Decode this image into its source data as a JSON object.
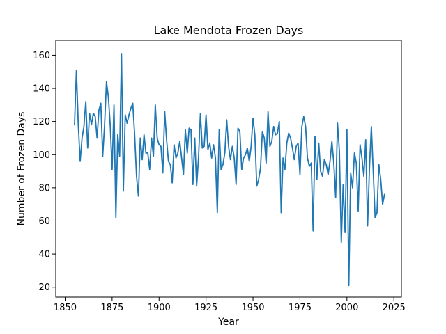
{
  "chart_data": {
    "type": "line",
    "title": "Lake Mendota Frozen Days",
    "xlabel": "Year",
    "ylabel": "Number of Frozen Days",
    "xlim": [
      1845,
      2029
    ],
    "ylim": [
      14,
      169
    ],
    "xticks": [
      1850,
      1875,
      1900,
      1925,
      1950,
      1975,
      2000,
      2025
    ],
    "yticks": [
      20,
      40,
      60,
      80,
      100,
      120,
      140,
      160
    ],
    "grid": false,
    "series_color": "#1f77b4",
    "series": [
      {
        "x": [
          1855,
          1856,
          1857,
          1858,
          1859,
          1860,
          1861,
          1862,
          1863,
          1864,
          1865,
          1866,
          1867,
          1868,
          1869,
          1870,
          1871,
          1872,
          1873,
          1874,
          1875,
          1876,
          1877,
          1878,
          1879,
          1880,
          1881,
          1882,
          1883,
          1884,
          1885,
          1886,
          1887,
          1888,
          1889,
          1890,
          1891,
          1892,
          1893,
          1894,
          1895,
          1896,
          1897,
          1898,
          1899,
          1900,
          1901,
          1902,
          1903,
          1904,
          1905,
          1906,
          1907,
          1908,
          1909,
          1910,
          1911,
          1912,
          1913,
          1914,
          1915,
          1916,
          1917,
          1918,
          1919,
          1920,
          1921,
          1922,
          1923,
          1924,
          1925,
          1926,
          1927,
          1928,
          1929,
          1930,
          1931,
          1932,
          1933,
          1934,
          1935,
          1936,
          1937,
          1938,
          1939,
          1940,
          1941,
          1942,
          1943,
          1944,
          1945,
          1946,
          1947,
          1948,
          1949,
          1950,
          1951,
          1952,
          1953,
          1954,
          1955,
          1956,
          1957,
          1958,
          1959,
          1960,
          1961,
          1962,
          1963,
          1964,
          1965,
          1966,
          1967,
          1968,
          1969,
          1970,
          1971,
          1972,
          1973,
          1974,
          1975,
          1976,
          1977,
          1978,
          1979,
          1980,
          1981,
          1982,
          1983,
          1984,
          1985,
          1986,
          1987,
          1988,
          1989,
          1990,
          1991,
          1992,
          1993,
          1994,
          1995,
          1996,
          1997,
          1998,
          1999,
          2000,
          2001,
          2002,
          2003,
          2004,
          2005,
          2006,
          2007,
          2008,
          2009,
          2010,
          2011,
          2012,
          2013,
          2014,
          2015,
          2016,
          2017,
          2018,
          2019,
          2020
        ],
        "values": [
          118,
          151,
          118,
          96,
          110,
          117,
          132,
          104,
          125,
          118,
          125,
          123,
          110,
          127,
          131,
          99,
          118,
          144,
          135,
          118,
          91,
          130,
          62,
          112,
          99,
          161,
          78,
          124,
          119,
          124,
          128,
          131,
          112,
          87,
          75,
          110,
          97,
          112,
          101,
          101,
          91,
          110,
          99,
          130,
          110,
          106,
          105,
          89,
          126,
          109,
          96,
          94,
          83,
          106,
          98,
          101,
          108,
          98,
          88,
          115,
          101,
          116,
          115,
          82,
          110,
          81,
          98,
          125,
          104,
          105,
          124,
          103,
          107,
          98,
          106,
          98,
          65,
          115,
          91,
          94,
          101,
          121,
          105,
          97,
          105,
          98,
          82,
          116,
          114,
          91,
          98,
          100,
          104,
          96,
          105,
          122,
          112,
          81,
          85,
          92,
          114,
          110,
          95,
          126,
          105,
          108,
          117,
          112,
          113,
          120,
          65,
          98,
          91,
          107,
          113,
          110,
          104,
          97,
          105,
          107,
          88,
          117,
          123,
          117,
          98,
          93,
          95,
          54,
          111,
          85,
          107,
          90,
          87,
          97,
          94,
          88,
          96,
          108,
          95,
          74,
          119,
          102,
          47,
          82,
          53,
          115,
          21,
          89,
          80,
          101,
          95,
          66,
          106,
          98,
          87,
          109,
          57,
          92,
          117,
          90,
          62,
          65,
          94,
          85,
          70,
          76
        ]
      }
    ]
  }
}
